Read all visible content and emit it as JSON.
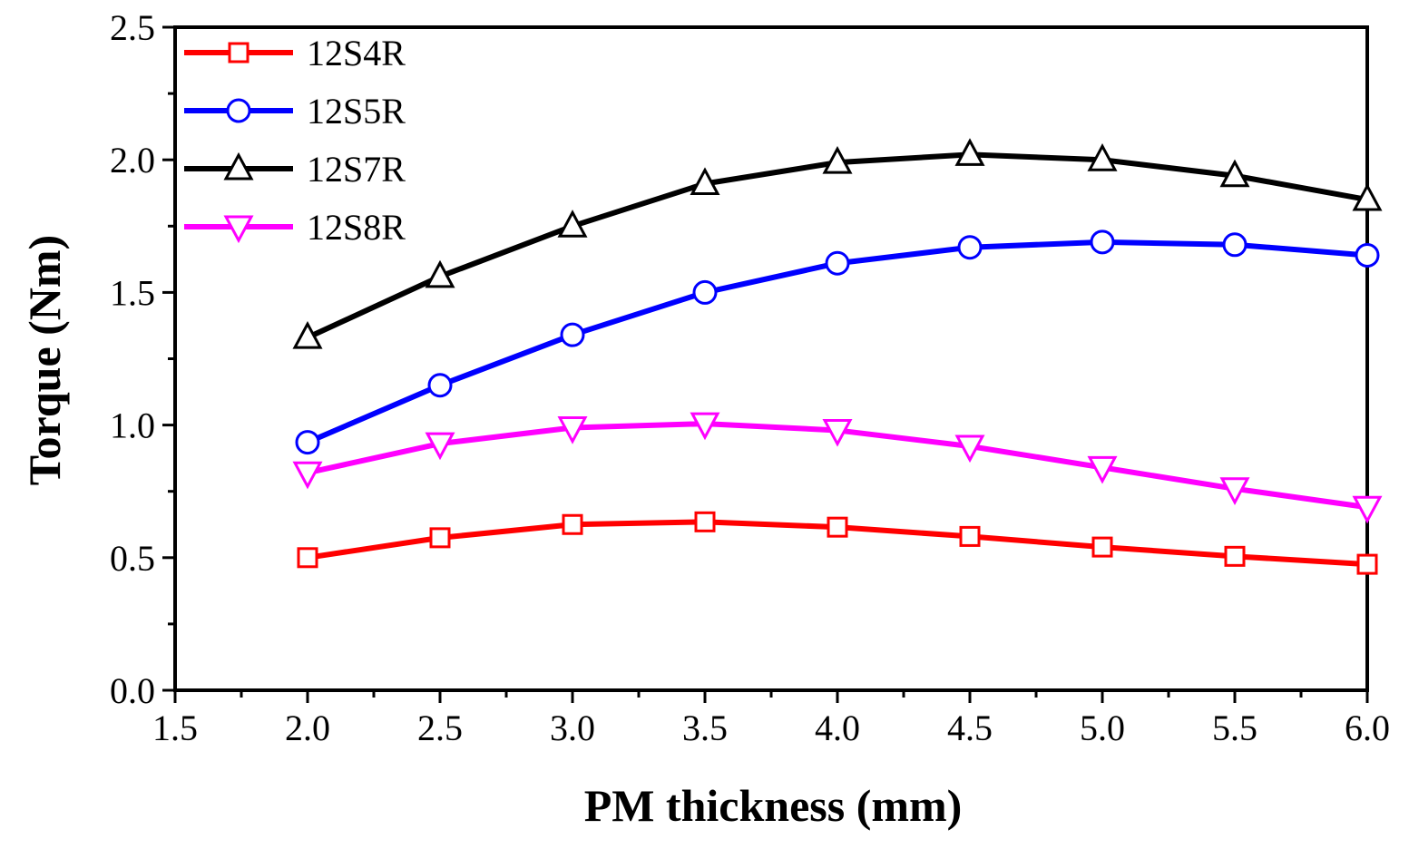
{
  "chart_data": {
    "type": "line",
    "title": "",
    "xlabel": "PM thickness (mm)",
    "ylabel": "Torque (Nm)",
    "xlim": [
      1.5,
      6.0
    ],
    "ylim": [
      0.0,
      2.5
    ],
    "xticks": [
      "1.5",
      "2.0",
      "2.5",
      "3.0",
      "3.5",
      "4.0",
      "4.5",
      "5.0",
      "5.5",
      "6.0"
    ],
    "yticks": [
      "0.0",
      "0.5",
      "1.0",
      "1.5",
      "2.0",
      "2.5"
    ],
    "grid": false,
    "legend_position": "top-left",
    "x": [
      2.0,
      2.5,
      3.0,
      3.5,
      4.0,
      4.5,
      5.0,
      5.5,
      6.0
    ],
    "series": [
      {
        "name": "12S4R",
        "color": "#ff0000",
        "marker": "square",
        "values": [
          0.5,
          0.575,
          0.625,
          0.635,
          0.615,
          0.58,
          0.54,
          0.505,
          0.475
        ]
      },
      {
        "name": "12S5R",
        "color": "#0000ff",
        "marker": "circle",
        "values": [
          0.935,
          1.15,
          1.34,
          1.5,
          1.61,
          1.67,
          1.69,
          1.68,
          1.64
        ]
      },
      {
        "name": "12S7R",
        "color": "#000000",
        "marker": "triangle-up",
        "values": [
          1.33,
          1.56,
          1.75,
          1.91,
          1.99,
          2.02,
          2.0,
          1.94,
          1.85
        ]
      },
      {
        "name": "12S8R",
        "color": "#ff00ff",
        "marker": "triangle-down",
        "values": [
          0.82,
          0.93,
          0.99,
          1.005,
          0.98,
          0.92,
          0.84,
          0.76,
          0.69
        ]
      }
    ]
  }
}
